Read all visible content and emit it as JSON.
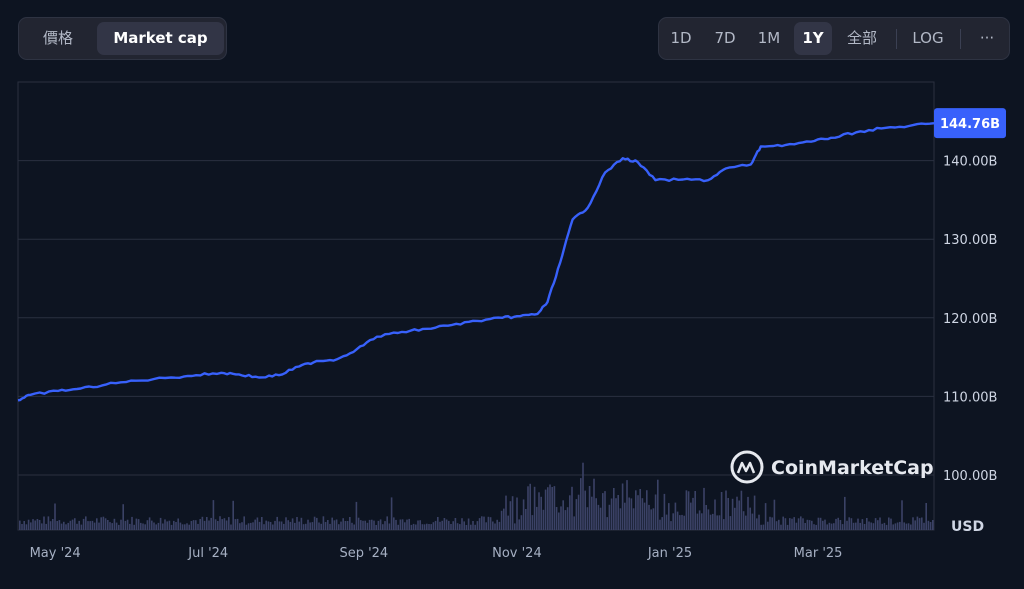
{
  "toggle": {
    "price_label": "價格",
    "market_cap_label": "Market cap",
    "selected": "Market cap"
  },
  "ranges": {
    "items": [
      "1D",
      "7D",
      "1M",
      "1Y",
      "全部",
      "LOG"
    ],
    "selected": "1Y",
    "more_label": "···"
  },
  "watermark": {
    "text": "CoinMarketCap"
  },
  "colors": {
    "background": "#0d1421",
    "line": "#3861fb",
    "badge": "#3861fb",
    "volume": "#3b4266",
    "grid": "#2a3040"
  },
  "chart_data": {
    "type": "line",
    "currency_label": "USD",
    "y_ticks": [
      "100.00B",
      "110.00B",
      "120.00B",
      "130.00B",
      "140.00B"
    ],
    "y_tick_values": [
      100,
      110,
      120,
      130,
      140
    ],
    "ylim": [
      93,
      150
    ],
    "x_ticks": [
      "May '24",
      "Jul '24",
      "Sep '24",
      "Nov '24",
      "Jan '25",
      "Mar '25"
    ],
    "x_tick_dates": [
      "2024-05-01",
      "2024-07-01",
      "2024-09-01",
      "2024-11-01",
      "2025-01-01",
      "2025-03-01"
    ],
    "x_range": [
      "2024-04-15",
      "2025-04-15"
    ],
    "current_value_label": "144.76B",
    "current_value": 144.76,
    "grid": true,
    "series": [
      {
        "values": [
          [
            "2024-04-15",
            109.5
          ],
          [
            "2024-04-20",
            110.2
          ],
          [
            "2024-05-01",
            110.7
          ],
          [
            "2024-05-10",
            111.0
          ],
          [
            "2024-05-20",
            111.5
          ],
          [
            "2024-06-01",
            112.0
          ],
          [
            "2024-06-15",
            112.4
          ],
          [
            "2024-06-25",
            112.7
          ],
          [
            "2024-07-05",
            113.0
          ],
          [
            "2024-07-12",
            112.8
          ],
          [
            "2024-07-20",
            112.4
          ],
          [
            "2024-07-28",
            112.7
          ],
          [
            "2024-08-05",
            113.8
          ],
          [
            "2024-08-12",
            114.5
          ],
          [
            "2024-08-20",
            114.7
          ],
          [
            "2024-08-28",
            116.0
          ],
          [
            "2024-09-05",
            117.6
          ],
          [
            "2024-09-15",
            118.2
          ],
          [
            "2024-09-25",
            118.6
          ],
          [
            "2024-10-05",
            119.1
          ],
          [
            "2024-10-15",
            119.6
          ],
          [
            "2024-10-25",
            120.0
          ],
          [
            "2024-11-01",
            120.2
          ],
          [
            "2024-11-08",
            120.5
          ],
          [
            "2024-11-12",
            122.0
          ],
          [
            "2024-11-17",
            127.0
          ],
          [
            "2024-11-22",
            132.5
          ],
          [
            "2024-11-28",
            134.0
          ],
          [
            "2024-12-05",
            138.5
          ],
          [
            "2024-12-12",
            140.3
          ],
          [
            "2024-12-18",
            139.8
          ],
          [
            "2024-12-25",
            137.5
          ],
          [
            "2025-01-05",
            137.6
          ],
          [
            "2025-01-15",
            137.5
          ],
          [
            "2025-01-22",
            139.0
          ],
          [
            "2025-02-01",
            139.5
          ],
          [
            "2025-02-05",
            141.8
          ],
          [
            "2025-02-15",
            142.0
          ],
          [
            "2025-02-25",
            142.4
          ],
          [
            "2025-03-05",
            142.9
          ],
          [
            "2025-03-15",
            143.6
          ],
          [
            "2025-03-25",
            144.1
          ],
          [
            "2025-04-05",
            144.4
          ],
          [
            "2025-04-15",
            144.76
          ]
        ]
      }
    ]
  }
}
